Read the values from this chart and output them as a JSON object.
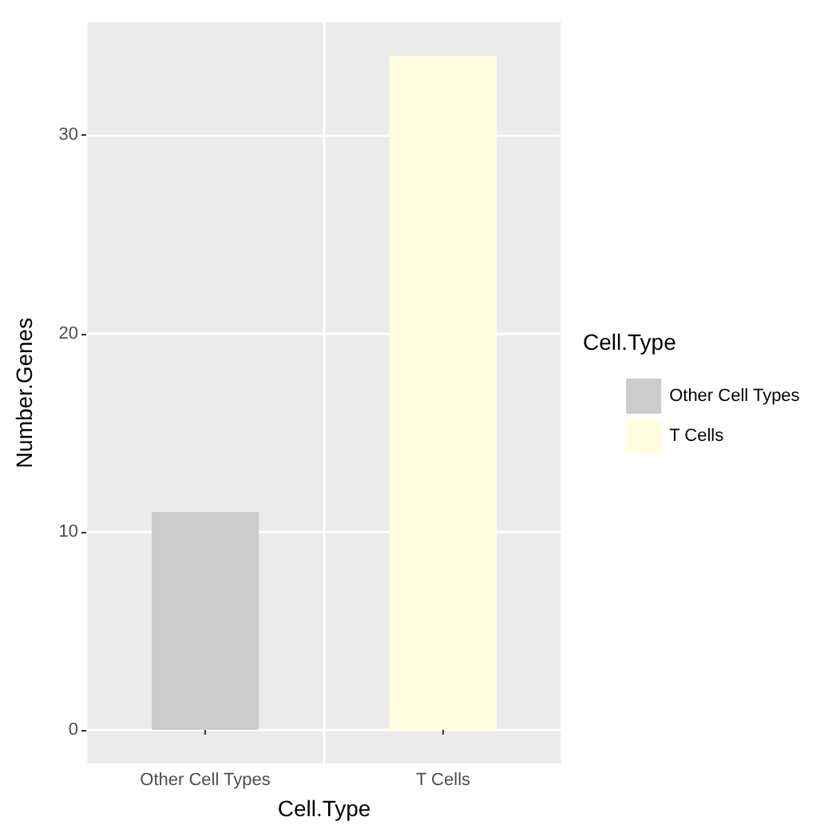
{
  "chart_data": {
    "type": "bar",
    "xlabel": "Cell.Type",
    "ylabel": "Number.Genes",
    "legend_title": "Cell.Type",
    "categories": [
      "Other Cell Types",
      "T Cells"
    ],
    "series": [
      {
        "name": "Other Cell Types",
        "color": "#cccccc",
        "values": [
          11,
          null
        ]
      },
      {
        "name": "T Cells",
        "color": "#ffffe0",
        "values": [
          null,
          34
        ]
      }
    ],
    "ylim": [
      -1.7,
      35.7
    ],
    "yticks": [
      0,
      10,
      20,
      30
    ],
    "grid": true,
    "legend": "right"
  }
}
